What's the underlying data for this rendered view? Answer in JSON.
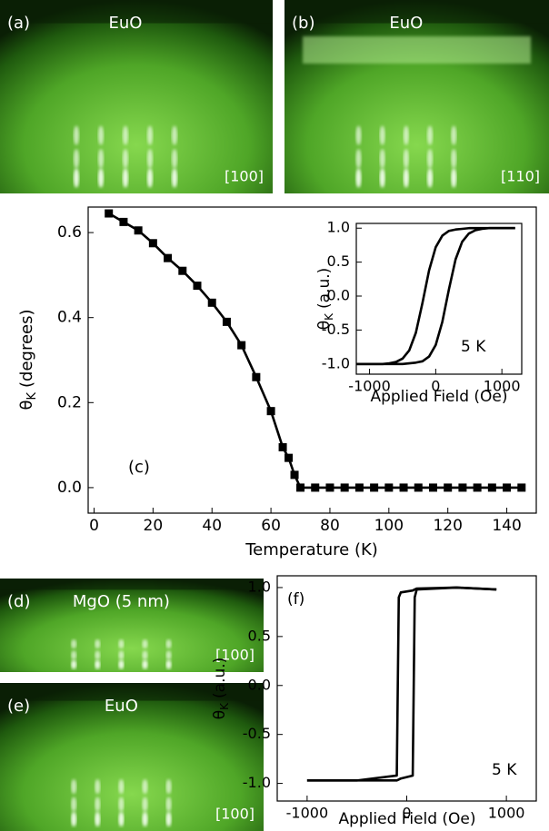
{
  "panels": {
    "a": {
      "label": "(a)",
      "title": "EuO",
      "direction": "[100]"
    },
    "b": {
      "label": "(b)",
      "title": "EuO",
      "direction": "[110]"
    },
    "d": {
      "label": "(d)",
      "title": "MgO (5 nm)",
      "direction": "[100]"
    },
    "e": {
      "label": "(e)",
      "title": "EuO",
      "direction": "[100]"
    }
  },
  "chart_data": [
    {
      "type": "line",
      "x_label": "Temperature (K)",
      "y_label": {
        "symbol": "θ",
        "subscript": "K",
        "text": "(degrees)"
      },
      "annotations": [
        "(c)"
      ],
      "marker": "square",
      "x": [
        5,
        10,
        15,
        20,
        25,
        30,
        35,
        40,
        45,
        50,
        55,
        60,
        64,
        66,
        68,
        70,
        75,
        80,
        85,
        90,
        95,
        100,
        105,
        110,
        115,
        120,
        125,
        130,
        135,
        140,
        145
      ],
      "series": [
        {
          "color": "#000000",
          "values": [
            0.645,
            0.625,
            0.605,
            0.575,
            0.54,
            0.51,
            0.475,
            0.435,
            0.39,
            0.335,
            0.26,
            0.18,
            0.095,
            0.07,
            0.03,
            0,
            0,
            0,
            0,
            0,
            0,
            0,
            0,
            0,
            0,
            0,
            0,
            0,
            0,
            0,
            0
          ]
        }
      ],
      "xlim": [
        -2,
        150
      ],
      "xticks": [
        0,
        20,
        40,
        60,
        80,
        100,
        120,
        140
      ],
      "ylim": [
        -0.06,
        0.66
      ],
      "yticks": [
        {
          "value": 0,
          "label": "0.0"
        },
        0.2,
        0.4,
        0.6
      ]
    },
    {
      "type": "line",
      "x_label": "Applied Field (Oe)",
      "y_label": {
        "symbol": "θ",
        "subscript": "K",
        "text": "(a.u.)"
      },
      "annotations": [
        "5 K"
      ],
      "x": [
        -1200,
        -1100,
        -1000,
        -900,
        -800,
        -700,
        -600,
        -500,
        -400,
        -300,
        -200,
        -100,
        0,
        100,
        200,
        300,
        400,
        500,
        600,
        700,
        800,
        900,
        1000,
        1100,
        1200
      ],
      "series": [
        {
          "color": "#000000",
          "values": [
            -1,
            -1,
            -1,
            -1,
            -1,
            -1,
            -1,
            -1,
            -0.99,
            -0.98,
            -0.96,
            -0.89,
            -0.72,
            -0.38,
            0.1,
            0.54,
            0.8,
            0.92,
            0.97,
            0.99,
            1,
            1,
            1,
            1,
            1
          ]
        },
        {
          "color": "#000000",
          "values": [
            -1,
            -1,
            -1,
            -1,
            -1,
            -0.99,
            -0.97,
            -0.92,
            -0.8,
            -0.54,
            -0.1,
            0.38,
            0.72,
            0.89,
            0.96,
            0.98,
            0.99,
            1,
            1,
            1,
            1,
            1,
            1,
            1,
            1
          ]
        }
      ],
      "xlim": [
        -1200,
        1300
      ],
      "xticks": [
        -1000,
        0,
        1000
      ],
      "ylim": [
        -1.15,
        1.07
      ],
      "yticks": [
        {
          "value": -1,
          "label": "-1.0"
        },
        -0.5,
        {
          "value": 0,
          "label": "0.0"
        },
        0.5,
        {
          "value": 1,
          "label": "1.0"
        }
      ]
    },
    {
      "type": "line",
      "x_label": "Applied Field (Oe)",
      "y_label": {
        "symbol": "θ",
        "subscript": "K",
        "text": "(a.u.)"
      },
      "annotations": [
        "(f)",
        "5 K"
      ],
      "x": [
        -1000,
        -500,
        -100,
        -80,
        -60,
        60,
        80,
        100,
        500,
        900
      ],
      "series": [
        {
          "color": "#000000",
          "values": [
            -0.97,
            -0.97,
            -0.97,
            -0.96,
            -0.95,
            -0.92,
            0.9,
            0.98,
            1,
            0.98
          ]
        },
        {
          "color": "#000000",
          "values": [
            -0.97,
            -0.97,
            -0.92,
            0.9,
            0.95,
            0.97,
            0.98,
            0.99,
            1,
            0.98
          ]
        }
      ],
      "xlim": [
        -1300,
        1300
      ],
      "xticks": [
        -1000,
        0,
        1000
      ],
      "ylim": [
        -1.18,
        1.12
      ],
      "yticks": [
        {
          "value": -1,
          "label": "-1.0"
        },
        -0.5,
        {
          "value": 0,
          "label": "0.0"
        },
        0.5,
        {
          "value": 1,
          "label": "1.0"
        }
      ]
    }
  ]
}
